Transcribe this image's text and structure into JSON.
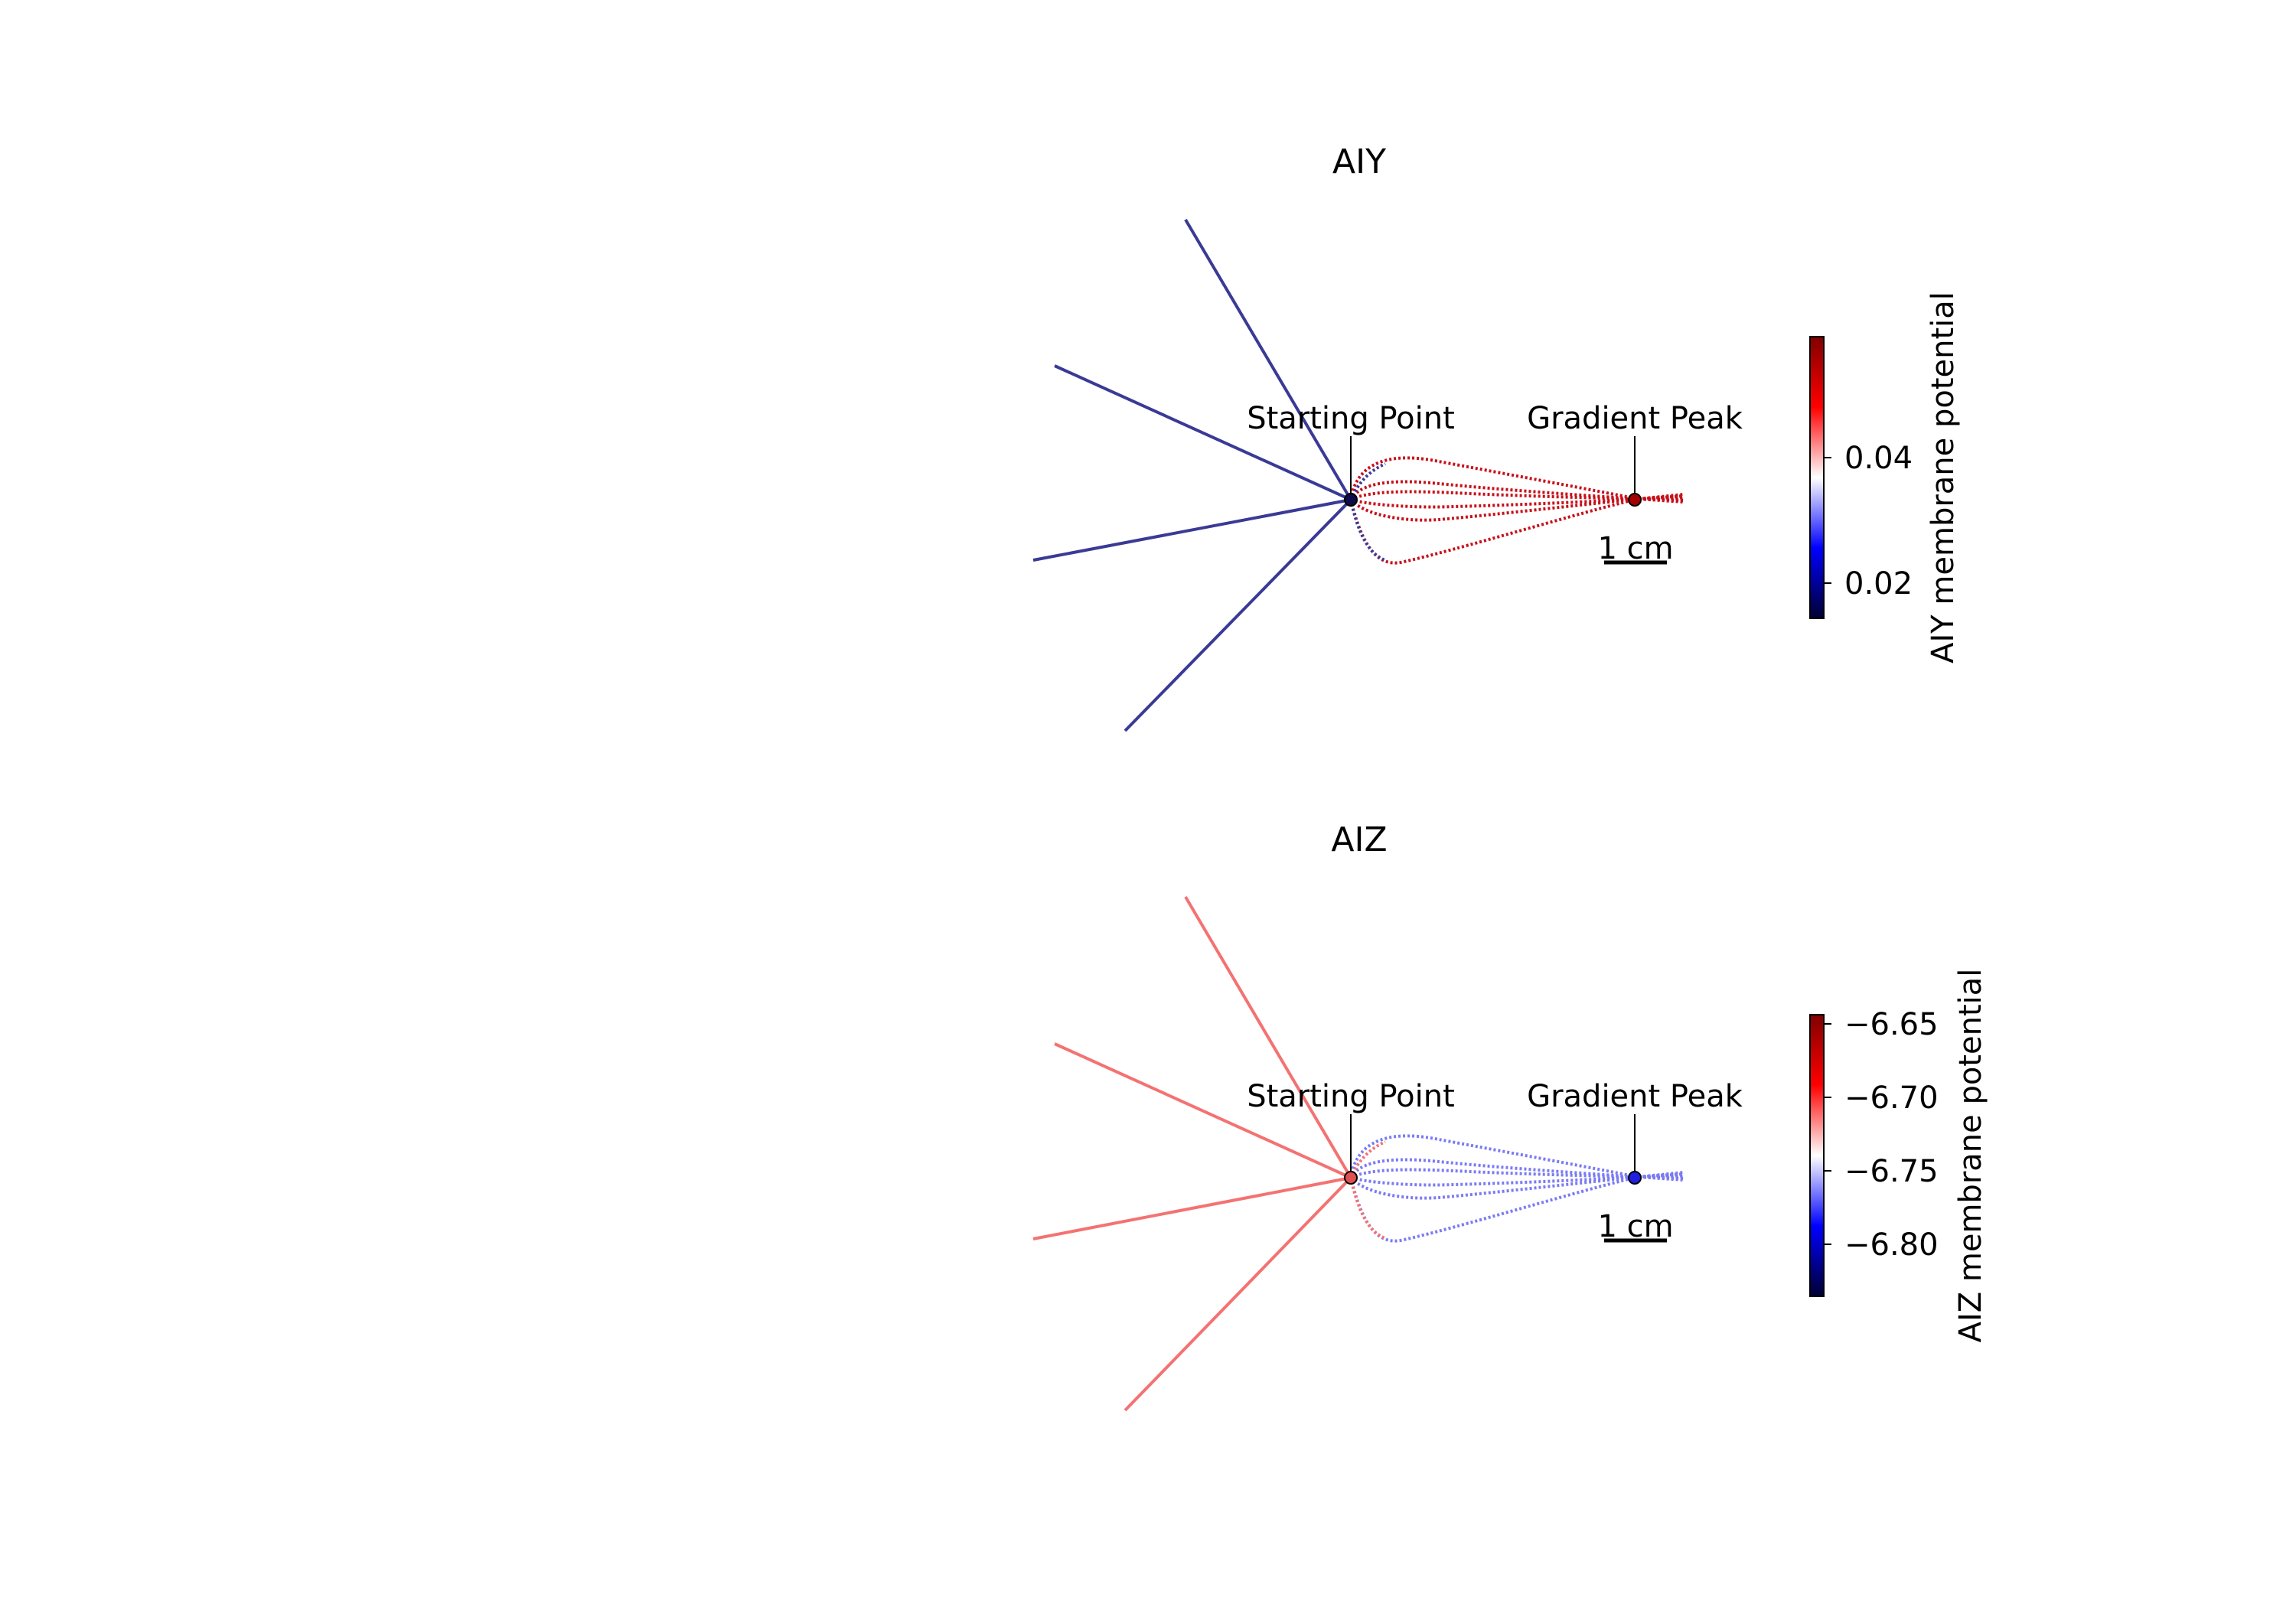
{
  "chart_data": [
    {
      "type": "line",
      "title": "AIY",
      "annotations": [
        "Starting Point",
        "Gradient Peak"
      ],
      "scale_bar": "1 cm",
      "colorbar": {
        "label": "AIY membrane potential",
        "ticks": [
          "0.04",
          "0.02"
        ],
        "tick_values": [
          0.04,
          0.02
        ],
        "range": [
          0.015,
          0.06
        ],
        "colors": [
          "#000033",
          "#0000ff",
          "#ffffff",
          "#ff0000",
          "#800000"
        ]
      },
      "series_colors": {
        "straight_rays": "#3a3a96",
        "curved_paths": "#c8101a"
      }
    },
    {
      "type": "line",
      "title": "AIZ",
      "annotations": [
        "Starting Point",
        "Gradient Peak"
      ],
      "scale_bar": "1 cm",
      "colorbar": {
        "label": "AIZ membrane potential",
        "ticks": [
          "−6.65",
          "−6.70",
          "−6.75",
          "−6.80"
        ],
        "tick_values": [
          -6.65,
          -6.7,
          -6.75,
          -6.8
        ],
        "range": [
          -6.84,
          -6.64
        ],
        "colors": [
          "#000033",
          "#0000ff",
          "#ffffff",
          "#ff0000",
          "#800000"
        ]
      },
      "series_colors": {
        "straight_rays": "#f47272",
        "curved_paths": "#7b7bf4"
      }
    }
  ]
}
